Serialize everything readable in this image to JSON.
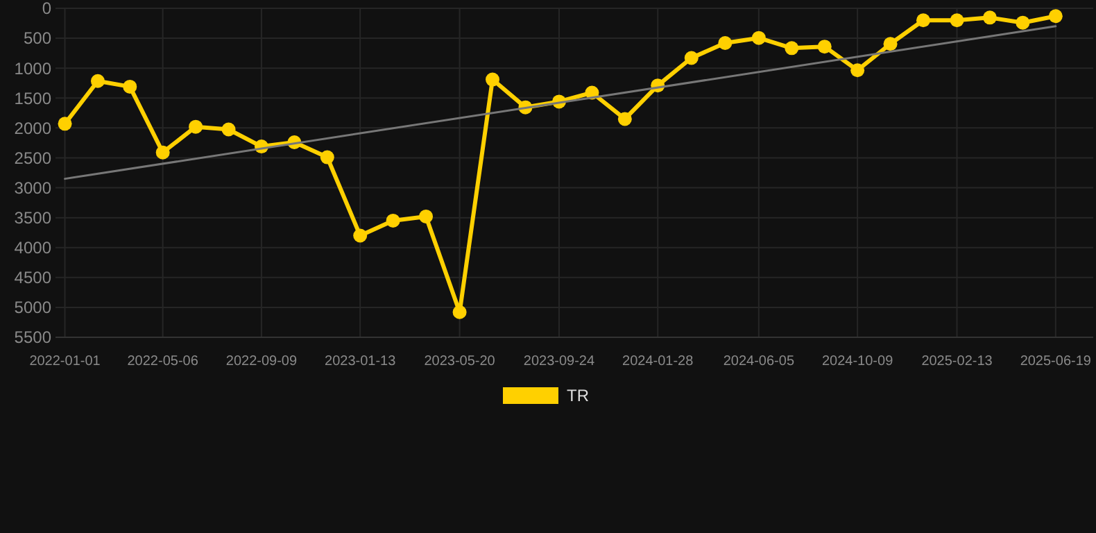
{
  "chart_data": {
    "type": "line",
    "x": [
      "2022-01-01",
      "2022-02-12",
      "2022-03-25",
      "2022-05-06",
      "2022-06-17",
      "2022-07-29",
      "2022-09-09",
      "2022-10-21",
      "2022-12-02",
      "2023-01-13",
      "2023-02-24",
      "2023-04-07",
      "2023-05-20",
      "2023-07-01",
      "2023-08-12",
      "2023-09-24",
      "2023-11-05",
      "2023-12-17",
      "2024-01-28",
      "2024-03-11",
      "2024-04-23",
      "2024-06-05",
      "2024-07-17",
      "2024-08-28",
      "2024-10-09",
      "2024-11-20",
      "2025-01-01",
      "2025-02-13",
      "2025-03-27",
      "2025-05-08",
      "2025-06-19"
    ],
    "series": [
      {
        "name": "TR",
        "color": "#ffd000",
        "marker": "circle",
        "values": [
          1930,
          1215,
          1310,
          2410,
          1980,
          2025,
          2310,
          2240,
          2490,
          3800,
          3550,
          3480,
          5080,
          1190,
          1655,
          1560,
          1410,
          1850,
          1290,
          830,
          580,
          495,
          665,
          640,
          1035,
          595,
          200,
          200,
          155,
          240,
          130
        ]
      },
      {
        "type": "line",
        "color": "#777777",
        "marker": "none",
        "x": [
          "2022-01-01",
          "2025-06-19"
        ],
        "values": [
          2850,
          300
        ]
      }
    ],
    "xlim": [
      "2021-12-20",
      "2025-08-06"
    ],
    "xticks": [
      "2022-01-01",
      "2022-05-06",
      "2022-09-09",
      "2023-01-13",
      "2023-05-20",
      "2023-09-24",
      "2024-01-28",
      "2024-06-05",
      "2024-10-09",
      "2025-02-13",
      "2025-06-19"
    ],
    "ylim": [
      5500,
      0
    ],
    "yticks": [
      0,
      500,
      1000,
      1500,
      2000,
      2500,
      3000,
      3500,
      4000,
      4500,
      5000,
      5500
    ],
    "grid": true,
    "legend": "bottom",
    "line_style": "solid"
  }
}
